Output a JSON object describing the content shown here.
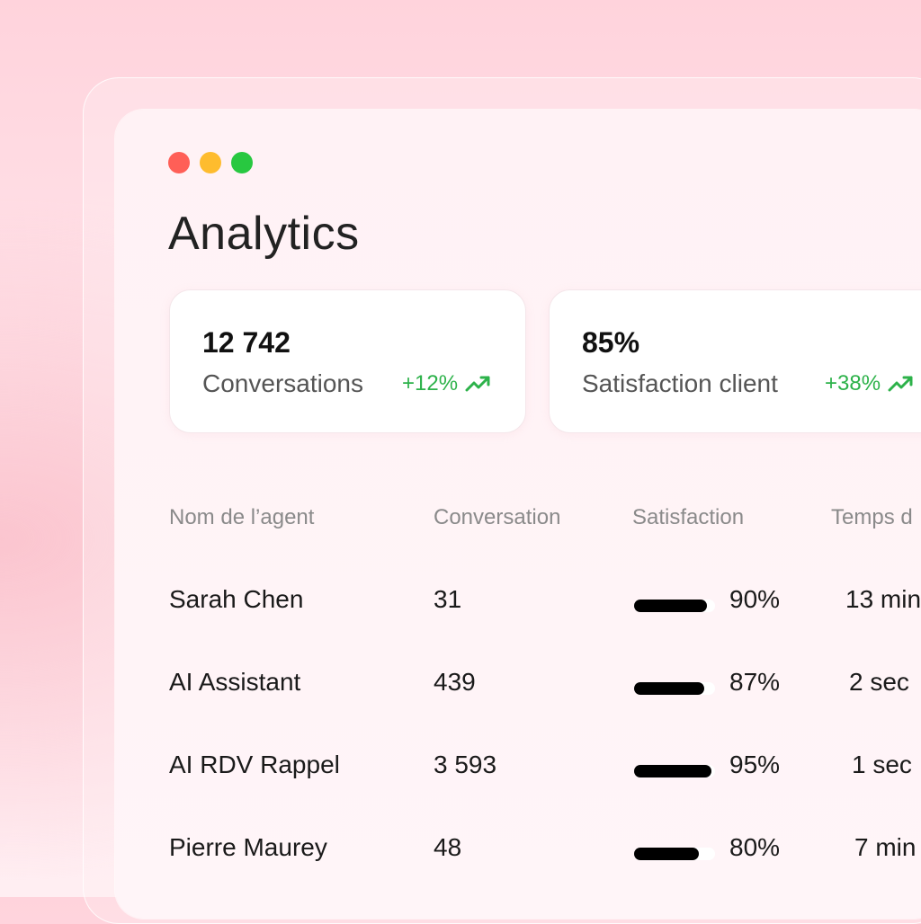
{
  "window": {
    "title": "Analytics"
  },
  "stats": [
    {
      "value": "12 742",
      "label": "Conversations",
      "delta": "+12%",
      "icon": "trending-up-icon"
    },
    {
      "value": "85%",
      "label": "Satisfaction client",
      "delta": "+38%",
      "icon": "trending-up-icon"
    }
  ],
  "table": {
    "headers": [
      "Nom de l’agent",
      "Conversation",
      "Satisfaction",
      "Temps d"
    ],
    "rows": [
      {
        "name": "Sarah Chen",
        "conversations": "31",
        "satisfaction": "90%",
        "satisfaction_value": 0.9,
        "time": "13 min"
      },
      {
        "name": "AI Assistant",
        "conversations": "439",
        "satisfaction": "87%",
        "satisfaction_value": 0.87,
        "time": "2 sec"
      },
      {
        "name": "AI RDV Rappel",
        "conversations": "3 593",
        "satisfaction": "95%",
        "satisfaction_value": 0.95,
        "time": "1 sec"
      },
      {
        "name": "Pierre Maurey",
        "conversations": "48",
        "satisfaction": "80%",
        "satisfaction_value": 0.8,
        "time": "7 min"
      }
    ]
  },
  "colors": {
    "positive": "#2db24a",
    "bar": "#000000",
    "dot_red": "#ff5f57",
    "dot_yellow": "#febc2e",
    "dot_green": "#28c840"
  }
}
